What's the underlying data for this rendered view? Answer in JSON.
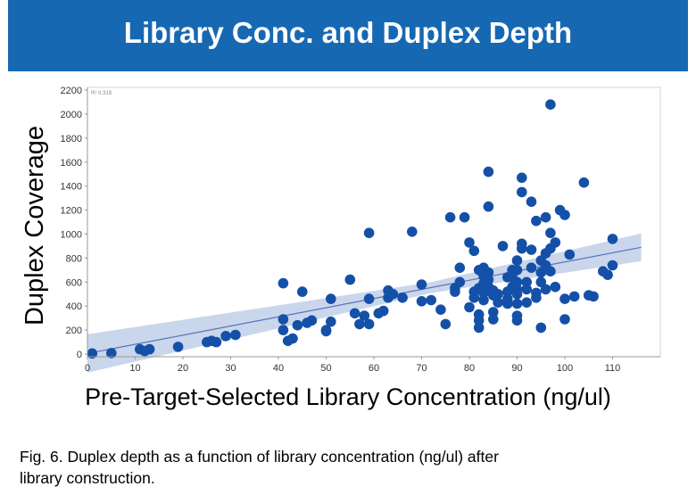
{
  "banner": {
    "title": "Library Conc. and Duplex Depth",
    "background": "#1668b3"
  },
  "caption": {
    "line1": "Fig. 6.  Duplex depth as a function of library concentration (ng/ul) after",
    "line2": "library construction."
  },
  "chart_data": {
    "type": "scatter",
    "title": "",
    "xlabel": "Pre-Target-Selected Library Concentration (ng/ul)",
    "ylabel": "Duplex Coverage",
    "xlim": [
      0,
      120
    ],
    "ylim": [
      0,
      2200
    ],
    "xticks": [
      0,
      10,
      20,
      30,
      40,
      50,
      60,
      70,
      80,
      90,
      100,
      110
    ],
    "yticks": [
      0,
      200,
      400,
      600,
      800,
      1000,
      1200,
      1400,
      1600,
      1800,
      2000,
      2200
    ],
    "annotation": "R² 0.319",
    "point_color": "#1550a8",
    "fit_line": {
      "x": [
        0,
        116
      ],
      "y": [
        5,
        890
      ],
      "color": "#5a72b8"
    },
    "confidence_band_color": "#b8c8e6",
    "grid": false,
    "points": [
      [
        1,
        5
      ],
      [
        5,
        8
      ],
      [
        11,
        40
      ],
      [
        12,
        25
      ],
      [
        13,
        40
      ],
      [
        19,
        60
      ],
      [
        25,
        100
      ],
      [
        26,
        110
      ],
      [
        27,
        100
      ],
      [
        29,
        150
      ],
      [
        31,
        160
      ],
      [
        41,
        590
      ],
      [
        41,
        290
      ],
      [
        41,
        200
      ],
      [
        42,
        110
      ],
      [
        43,
        130
      ],
      [
        44,
        240
      ],
      [
        45,
        520
      ],
      [
        46,
        260
      ],
      [
        47,
        280
      ],
      [
        50,
        200
      ],
      [
        50,
        190
      ],
      [
        51,
        460
      ],
      [
        51,
        270
      ],
      [
        55,
        620
      ],
      [
        56,
        340
      ],
      [
        57,
        250
      ],
      [
        58,
        320
      ],
      [
        59,
        1010
      ],
      [
        59,
        460
      ],
      [
        59,
        250
      ],
      [
        61,
        340
      ],
      [
        62,
        360
      ],
      [
        63,
        530
      ],
      [
        63,
        470
      ],
      [
        64,
        500
      ],
      [
        66,
        470
      ],
      [
        68,
        1020
      ],
      [
        70,
        580
      ],
      [
        70,
        440
      ],
      [
        72,
        450
      ],
      [
        74,
        370
      ],
      [
        75,
        250
      ],
      [
        76,
        1140
      ],
      [
        77,
        520
      ],
      [
        77,
        550
      ],
      [
        78,
        720
      ],
      [
        78,
        600
      ],
      [
        79,
        1140
      ],
      [
        80,
        390
      ],
      [
        80,
        930
      ],
      [
        81,
        860
      ],
      [
        81,
        520
      ],
      [
        81,
        470
      ],
      [
        82,
        330
      ],
      [
        82,
        550
      ],
      [
        82,
        280
      ],
      [
        82,
        220
      ],
      [
        82,
        700
      ],
      [
        83,
        650
      ],
      [
        83,
        720
      ],
      [
        83,
        590
      ],
      [
        83,
        510
      ],
      [
        83,
        450
      ],
      [
        84,
        1520
      ],
      [
        84,
        1230
      ],
      [
        84,
        680
      ],
      [
        84,
        620
      ],
      [
        84,
        560
      ],
      [
        85,
        530
      ],
      [
        85,
        490
      ],
      [
        85,
        350
      ],
      [
        85,
        290
      ],
      [
        86,
        430
      ],
      [
        86,
        500
      ],
      [
        87,
        900
      ],
      [
        88,
        640
      ],
      [
        88,
        520
      ],
      [
        88,
        460
      ],
      [
        88,
        420
      ],
      [
        89,
        560
      ],
      [
        89,
        700
      ],
      [
        89,
        640
      ],
      [
        90,
        780
      ],
      [
        90,
        700
      ],
      [
        90,
        600
      ],
      [
        90,
        540
      ],
      [
        90,
        500
      ],
      [
        90,
        420
      ],
      [
        90,
        320
      ],
      [
        90,
        280
      ],
      [
        91,
        1470
      ],
      [
        91,
        1350
      ],
      [
        91,
        920
      ],
      [
        91,
        880
      ],
      [
        92,
        600
      ],
      [
        92,
        540
      ],
      [
        92,
        430
      ],
      [
        93,
        870
      ],
      [
        93,
        1270
      ],
      [
        93,
        720
      ],
      [
        94,
        1110
      ],
      [
        94,
        510
      ],
      [
        94,
        470
      ],
      [
        95,
        220
      ],
      [
        95,
        780
      ],
      [
        95,
        680
      ],
      [
        95,
        600
      ],
      [
        96,
        1140
      ],
      [
        96,
        840
      ],
      [
        96,
        740
      ],
      [
        96,
        540
      ],
      [
        97,
        2080
      ],
      [
        97,
        1010
      ],
      [
        97,
        880
      ],
      [
        97,
        690
      ],
      [
        98,
        930
      ],
      [
        98,
        560
      ],
      [
        99,
        1200
      ],
      [
        100,
        1160
      ],
      [
        100,
        460
      ],
      [
        100,
        290
      ],
      [
        101,
        830
      ],
      [
        102,
        480
      ],
      [
        104,
        1430
      ],
      [
        105,
        490
      ],
      [
        106,
        480
      ],
      [
        108,
        690
      ],
      [
        109,
        660
      ],
      [
        110,
        740
      ],
      [
        110,
        960
      ]
    ]
  }
}
